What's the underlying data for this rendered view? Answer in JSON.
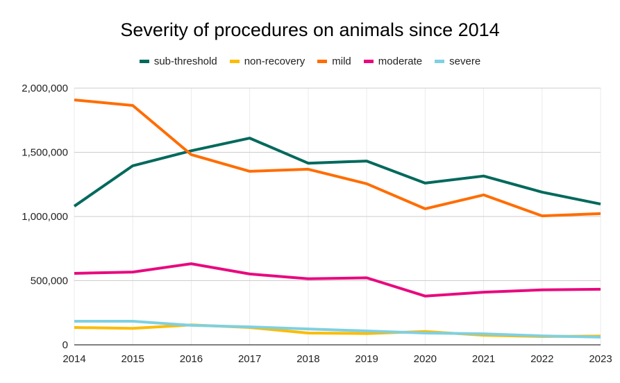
{
  "chart_data": {
    "type": "line",
    "title": "Severity of procedures on animals since 2014",
    "xlabel": "",
    "ylabel": "",
    "x": [
      "2014",
      "2015",
      "2016",
      "2017",
      "2018",
      "2019",
      "2020",
      "2021",
      "2022",
      "2023"
    ],
    "ylim": [
      0,
      2000000
    ],
    "yticks": [
      0,
      500000,
      1000000,
      1500000,
      2000000
    ],
    "ytick_labels": [
      "0",
      "500,000",
      "1,000,000",
      "1,500,000",
      "2,000,000"
    ],
    "grid": true,
    "legend_position": "top",
    "series": [
      {
        "name": "sub-threshold",
        "color": "#00695c",
        "values": [
          1080000,
          1395000,
          1512000,
          1610000,
          1415000,
          1432000,
          1260000,
          1315000,
          1190000,
          1097000
        ]
      },
      {
        "name": "non-recovery",
        "color": "#fbbc04",
        "values": [
          135000,
          128000,
          155000,
          135000,
          92000,
          88000,
          104000,
          75000,
          65000,
          68000
        ]
      },
      {
        "name": "mild",
        "color": "#ff6d01",
        "values": [
          1908000,
          1865000,
          1482000,
          1352000,
          1368000,
          1255000,
          1060000,
          1168000,
          1005000,
          1022000
        ]
      },
      {
        "name": "moderate",
        "color": "#e8097e",
        "values": [
          557000,
          567000,
          632000,
          552000,
          515000,
          522000,
          380000,
          410000,
          428000,
          433000
        ]
      },
      {
        "name": "severe",
        "color": "#7fd0e0",
        "values": [
          184000,
          184000,
          152000,
          140000,
          124000,
          108000,
          92000,
          86000,
          70000,
          60000
        ]
      }
    ]
  }
}
